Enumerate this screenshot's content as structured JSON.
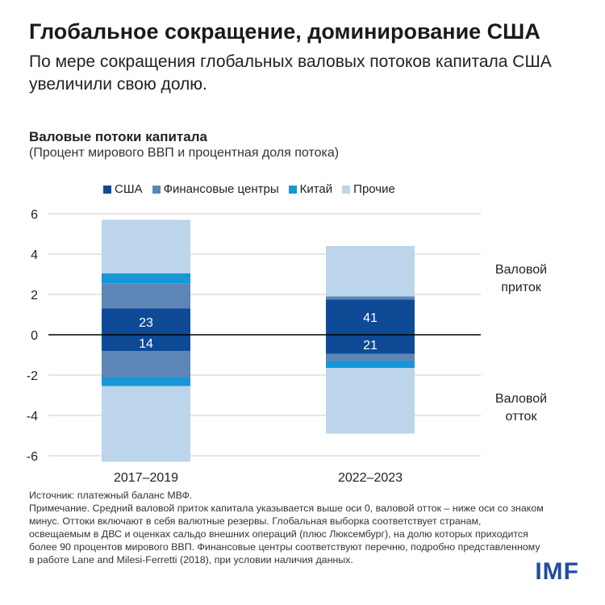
{
  "header": {
    "title": "Глобальное сокращение, доминирование США",
    "subtitle": "По мере сокращения глобальных валовых потоков капитала США увеличили свою долю."
  },
  "chart_data": {
    "type": "bar",
    "stacked": true,
    "title": "Валовые потоки капитала",
    "subtitle": "(Процент мирового ВВП и процентная доля потока)",
    "categories": [
      "2017–2019",
      "2022–2023"
    ],
    "ylim": [
      -6,
      6
    ],
    "yticks": [
      6,
      4,
      2,
      0,
      -2,
      -4,
      -6
    ],
    "series": [
      {
        "name": "США",
        "color": "#0e4a96",
        "inflow": [
          1.3,
          1.75
        ],
        "outflow": [
          -0.8,
          -0.95
        ]
      },
      {
        "name": "Финансовые центры",
        "color": "#5d86b6",
        "inflow": [
          1.25,
          0.15
        ],
        "outflow": [
          -1.3,
          -0.35
        ]
      },
      {
        "name": "Китай",
        "color": "#1797d8",
        "inflow": [
          0.5,
          0.0
        ],
        "outflow": [
          -0.45,
          -0.35
        ]
      },
      {
        "name": "Прочие",
        "color": "#bcd5ea",
        "inflow": [
          2.65,
          2.5
        ],
        "outflow": [
          -3.75,
          -3.25
        ]
      }
    ],
    "data_labels": {
      "inflow": [
        "23",
        "41"
      ],
      "outflow": [
        "14",
        "21"
      ]
    },
    "annotations": {
      "inflow": "Валовой приток",
      "outflow": "Валовой отток"
    },
    "grid": true,
    "legend_position": "top"
  },
  "notes": {
    "source": "Источник: платежный баланс МВФ.",
    "note": "Примечание. Средний валовой приток капитала указывается выше оси 0, валовой отток – ниже оси со знаком минус. Оттоки включают в себя валютные резервы. Глобальная выборка соответствует странам, освещаемым в ДВС и оценках сальдо внешних операций (плюс Люксембург), на долю которых приходится более 90 процентов мирового ВВП. Финансовые центры соответствуют перечню, подробно представленному в работе Lane and Milesi-Ferretti (2018), при условии наличия данных."
  },
  "logo": {
    "text": "IMF"
  },
  "colors": {
    "axis": "#000000",
    "grid": "#cccccc",
    "logo": "#1f4e9c"
  }
}
